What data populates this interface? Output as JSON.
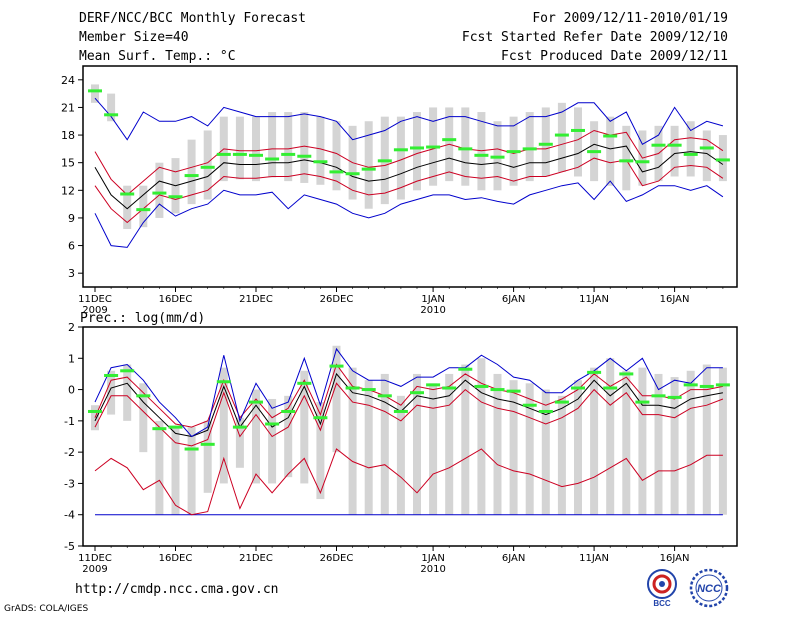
{
  "header": {
    "title": "DERF/NCC/BCC Monthly Forecast",
    "member_size": "Member Size=40",
    "variable": "Mean Surf. Temp.: °C",
    "period": "For 2009/12/11-2010/01/19",
    "started": "Fcst Started Refer Date 2009/12/10",
    "produced": "Fcst Produced Date 2009/12/11"
  },
  "footer": {
    "url": "http://cmdp.ncc.cma.gov.cn",
    "grads": "GrADS: COLA/IGES",
    "logo_left_text": "BCC",
    "logo_right_text": "NCC"
  },
  "colors": {
    "box": "#d4d4d4",
    "mean": "#000000",
    "band": "#cc0022",
    "extreme": "#0000cc",
    "median": "#33ee33",
    "frame": "#000000"
  },
  "chart_data": [
    {
      "type": "box",
      "name": "temperature",
      "title": "Mean Surf. Temp.: °C",
      "xlabel": "",
      "ylabel": "°C",
      "ylim": [
        1.5,
        25.5
      ],
      "yticks": [
        3,
        6,
        9,
        12,
        15,
        18,
        21,
        24
      ],
      "xlim": [
        0,
        40
      ],
      "xticks": [
        {
          "day": 0,
          "label": "11DEC",
          "year": "2009"
        },
        {
          "day": 5,
          "label": "16DEC",
          "year": ""
        },
        {
          "day": 10,
          "label": "21DEC",
          "year": ""
        },
        {
          "day": 15,
          "label": "26DEC",
          "year": ""
        },
        {
          "day": 21,
          "label": "1JAN",
          "year": "2010"
        },
        {
          "day": 26,
          "label": "6JAN",
          "year": ""
        },
        {
          "day": 31,
          "label": "11JAN",
          "year": ""
        },
        {
          "day": 36,
          "label": "16JAN",
          "year": ""
        }
      ],
      "days": [
        0,
        1,
        2,
        3,
        4,
        5,
        6,
        7,
        8,
        9,
        10,
        11,
        12,
        13,
        14,
        15,
        16,
        17,
        18,
        19,
        20,
        21,
        22,
        23,
        24,
        25,
        26,
        27,
        28,
        29,
        30,
        31,
        32,
        33,
        34,
        35,
        36,
        37,
        38,
        39
      ],
      "box_low": [
        21.5,
        19.5,
        7.8,
        8.0,
        9.0,
        9.5,
        10.5,
        11.0,
        13.0,
        13.2,
        13.0,
        13.4,
        13.0,
        12.8,
        12.6,
        12.0,
        11.0,
        10.0,
        10.5,
        11.0,
        12.0,
        12.5,
        13.0,
        12.5,
        12.0,
        12.0,
        12.5,
        13.0,
        13.5,
        14.0,
        13.5,
        13.0,
        12.5,
        12.0,
        12.5,
        13.0,
        13.5,
        13.5,
        13.0,
        13.0
      ],
      "box_high": [
        23.5,
        22.5,
        12.5,
        12.5,
        15.0,
        15.5,
        17.5,
        18.5,
        20.0,
        20.0,
        20.0,
        20.5,
        20.5,
        20.5,
        20.0,
        19.5,
        19.0,
        19.5,
        20.0,
        20.0,
        20.5,
        21.0,
        21.0,
        21.0,
        20.5,
        19.5,
        20.0,
        20.5,
        21.0,
        21.5,
        21.0,
        19.5,
        20.0,
        19.0,
        18.5,
        19.0,
        19.0,
        19.5,
        18.5,
        18.0
      ],
      "median": [
        22.8,
        20.2,
        11.6,
        9.9,
        11.7,
        11.3,
        13.6,
        14.5,
        15.9,
        15.9,
        15.8,
        15.4,
        15.9,
        15.7,
        15.1,
        14.0,
        13.8,
        14.3,
        15.2,
        16.4,
        16.6,
        16.7,
        17.5,
        16.5,
        15.8,
        15.6,
        16.2,
        16.5,
        17.0,
        18.0,
        18.5,
        16.2,
        17.9,
        15.2,
        15.1,
        16.9,
        16.9,
        15.9,
        16.6,
        15.3
      ],
      "series": [
        {
          "name": "ensemble mean",
          "role": "mean",
          "values": [
            14.5,
            11.5,
            10.0,
            11.5,
            13.0,
            12.5,
            13.0,
            13.5,
            15.0,
            14.8,
            14.8,
            15.0,
            15.0,
            15.3,
            15.0,
            14.5,
            13.5,
            13.0,
            13.2,
            13.8,
            14.5,
            15.0,
            15.5,
            15.0,
            14.8,
            15.0,
            14.5,
            15.0,
            15.0,
            15.5,
            16.0,
            17.0,
            16.5,
            16.8,
            14.0,
            14.5,
            16.0,
            16.2,
            16.0,
            14.8
          ]
        },
        {
          "name": "upper band",
          "role": "band",
          "values": [
            16.2,
            13.2,
            11.5,
            13.0,
            14.5,
            14.0,
            14.5,
            15.0,
            16.5,
            16.3,
            16.3,
            16.5,
            16.5,
            16.8,
            16.5,
            16.0,
            15.0,
            14.5,
            14.7,
            15.3,
            16.0,
            16.5,
            17.0,
            16.5,
            16.3,
            16.5,
            16.0,
            16.5,
            16.5,
            17.0,
            17.5,
            18.5,
            18.0,
            18.3,
            15.5,
            16.0,
            17.5,
            17.7,
            17.5,
            16.3
          ]
        },
        {
          "name": "lower band",
          "role": "band",
          "values": [
            12.5,
            10.0,
            8.5,
            10.0,
            11.5,
            11.0,
            11.5,
            12.0,
            13.5,
            13.3,
            13.3,
            13.5,
            13.5,
            13.8,
            13.5,
            13.0,
            12.0,
            11.5,
            11.7,
            12.3,
            13.0,
            13.5,
            14.0,
            13.5,
            13.3,
            13.5,
            13.0,
            13.5,
            13.5,
            14.0,
            14.5,
            15.5,
            15.0,
            15.3,
            12.5,
            13.0,
            14.5,
            14.7,
            14.5,
            13.3
          ]
        },
        {
          "name": "ensemble maximum",
          "role": "extreme",
          "values": [
            22.0,
            20.0,
            17.5,
            20.5,
            19.5,
            19.5,
            20.0,
            19.0,
            21.0,
            20.5,
            20.0,
            20.0,
            20.0,
            20.3,
            20.0,
            19.5,
            17.5,
            18.0,
            18.5,
            19.5,
            20.0,
            19.5,
            20.0,
            20.0,
            19.5,
            19.0,
            19.0,
            20.0,
            20.0,
            20.5,
            21.5,
            21.5,
            19.5,
            20.5,
            17.0,
            18.0,
            21.0,
            18.5,
            19.5,
            19.0
          ]
        },
        {
          "name": "ensemble minimum",
          "role": "extreme",
          "values": [
            9.5,
            6.0,
            5.8,
            8.5,
            10.5,
            9.2,
            10.0,
            10.5,
            12.0,
            11.5,
            11.5,
            11.8,
            10.0,
            11.5,
            11.0,
            10.5,
            9.5,
            9.0,
            9.5,
            10.5,
            11.0,
            11.5,
            11.5,
            11.0,
            11.2,
            10.8,
            10.5,
            11.5,
            12.0,
            12.5,
            12.8,
            11.0,
            13.0,
            10.8,
            11.5,
            12.5,
            12.5,
            12.0,
            12.5,
            11.3
          ]
        }
      ]
    },
    {
      "type": "box",
      "name": "precipitation",
      "title": "Prec.: log(mm/d)",
      "xlabel": "",
      "ylabel": "log(mm/d)",
      "ylim": [
        -5,
        2
      ],
      "yticks": [
        -5,
        -4,
        -3,
        -2,
        -1,
        0,
        1,
        2
      ],
      "xlim": [
        0,
        40
      ],
      "xticks": [
        {
          "day": 0,
          "label": "11DEC",
          "year": "2009"
        },
        {
          "day": 5,
          "label": "16DEC",
          "year": ""
        },
        {
          "day": 10,
          "label": "21DEC",
          "year": ""
        },
        {
          "day": 15,
          "label": "26DEC",
          "year": ""
        },
        {
          "day": 21,
          "label": "1JAN",
          "year": "2010"
        },
        {
          "day": 26,
          "label": "6JAN",
          "year": ""
        },
        {
          "day": 31,
          "label": "11JAN",
          "year": ""
        },
        {
          "day": 36,
          "label": "16JAN",
          "year": ""
        }
      ],
      "days": [
        0,
        1,
        2,
        3,
        4,
        5,
        6,
        7,
        8,
        9,
        10,
        11,
        12,
        13,
        14,
        15,
        16,
        17,
        18,
        19,
        20,
        21,
        22,
        23,
        24,
        25,
        26,
        27,
        28,
        29,
        30,
        31,
        32,
        33,
        34,
        35,
        36,
        37,
        38,
        39
      ],
      "box_low": [
        -1.3,
        -0.8,
        -1.0,
        -2.0,
        -4.0,
        -4.0,
        -4.0,
        -3.3,
        -3.0,
        -2.5,
        -3.0,
        -3.0,
        -2.8,
        -3.0,
        -3.5,
        -2.0,
        -4.0,
        -4.0,
        -4.0,
        -4.0,
        -4.0,
        -4.0,
        -4.0,
        -4.0,
        -4.0,
        -4.0,
        -4.0,
        -4.0,
        -4.0,
        -4.0,
        -4.0,
        -4.0,
        -4.0,
        -4.0,
        -4.0,
        -4.0,
        -4.0,
        -4.0,
        -4.0,
        -4.0
      ],
      "box_high": [
        -0.5,
        0.6,
        0.8,
        0.2,
        -1.0,
        -1.2,
        -1.2,
        -1.0,
        0.7,
        -0.9,
        0.0,
        -0.3,
        -0.2,
        0.6,
        -0.4,
        1.4,
        0.7,
        0.3,
        0.5,
        -0.2,
        0.5,
        0.2,
        0.5,
        0.8,
        1.0,
        0.5,
        0.3,
        0.2,
        0.0,
        -0.2,
        0.3,
        0.7,
        1.0,
        0.6,
        0.7,
        0.5,
        0.4,
        0.6,
        0.8,
        0.7
      ],
      "median": [
        -0.7,
        0.45,
        0.6,
        -0.2,
        -1.25,
        -1.2,
        -1.9,
        -1.75,
        0.25,
        -1.2,
        -0.4,
        -1.1,
        -0.7,
        0.2,
        -0.9,
        0.75,
        0.05,
        0.0,
        -0.2,
        -0.7,
        -0.1,
        0.15,
        0.05,
        0.65,
        0.1,
        0.0,
        -0.05,
        -0.5,
        -0.7,
        -0.4,
        0.05,
        0.55,
        0.05,
        0.5,
        -0.4,
        -0.2,
        -0.25,
        0.15,
        0.1,
        0.15
      ],
      "series": [
        {
          "name": "ensemble mean",
          "role": "mean",
          "values": [
            -1.0,
            0.05,
            0.2,
            -0.4,
            -0.9,
            -1.4,
            -1.5,
            -1.3,
            0.1,
            -1.2,
            -0.5,
            -1.2,
            -0.9,
            0.1,
            -1.1,
            0.5,
            -0.1,
            -0.2,
            -0.4,
            -0.7,
            -0.2,
            -0.3,
            -0.2,
            0.3,
            -0.1,
            -0.3,
            -0.4,
            -0.6,
            -0.8,
            -0.6,
            -0.3,
            0.3,
            -0.2,
            0.2,
            -0.5,
            -0.5,
            -0.6,
            -0.3,
            -0.2,
            -0.1
          ]
        },
        {
          "name": "upper band",
          "role": "band",
          "values": [
            -0.9,
            0.3,
            0.4,
            -0.1,
            -0.6,
            -1.1,
            -1.2,
            -1.0,
            0.3,
            -0.9,
            -0.3,
            -0.9,
            -0.6,
            0.3,
            -0.8,
            0.8,
            0.1,
            0.0,
            -0.2,
            -0.5,
            0.1,
            0.0,
            0.1,
            0.5,
            0.2,
            0.0,
            -0.1,
            -0.3,
            -0.5,
            -0.3,
            0.0,
            0.5,
            0.1,
            0.4,
            -0.2,
            -0.2,
            -0.3,
            0.0,
            0.0,
            0.1
          ]
        },
        {
          "name": "lower band",
          "role": "band",
          "values": [
            -1.2,
            -0.2,
            -0.2,
            -0.7,
            -1.2,
            -1.7,
            -1.8,
            -1.6,
            -0.1,
            -1.5,
            -0.8,
            -1.5,
            -1.2,
            -0.2,
            -1.3,
            0.2,
            -0.4,
            -0.5,
            -0.7,
            -1.0,
            -0.5,
            -0.6,
            -0.5,
            0.0,
            -0.4,
            -0.6,
            -0.7,
            -0.9,
            -1.1,
            -0.9,
            -0.6,
            0.0,
            -0.5,
            -0.1,
            -0.8,
            -0.8,
            -0.9,
            -0.6,
            -0.5,
            -0.3
          ]
        },
        {
          "name": "ensemble maximum",
          "role": "extreme",
          "values": [
            -0.4,
            0.7,
            0.8,
            0.3,
            -0.4,
            -0.9,
            -1.5,
            -1.2,
            1.1,
            -1.0,
            0.2,
            -0.6,
            -0.4,
            1.0,
            -0.5,
            1.3,
            0.6,
            0.3,
            0.3,
            0.1,
            0.4,
            0.4,
            0.7,
            0.7,
            1.1,
            0.8,
            0.4,
            0.3,
            -0.1,
            -0.1,
            0.3,
            0.6,
            1.0,
            0.6,
            1.0,
            0.0,
            0.3,
            0.2,
            0.7,
            0.7
          ]
        },
        {
          "name": "ensemble minimum",
          "role": "extreme",
          "values": [
            -4.0,
            -4.0,
            -4.0,
            -4.0,
            -4.0,
            -4.0,
            -4.0,
            -4.0,
            -4.0,
            -4.0,
            -4.0,
            -4.0,
            -4.0,
            -4.0,
            -4.0,
            -4.0,
            -4.0,
            -4.0,
            -4.0,
            -4.0,
            -4.0,
            -4.0,
            -4.0,
            -4.0,
            -4.0,
            -4.0,
            -4.0,
            -4.0,
            -4.0,
            -4.0,
            -4.0,
            -4.0,
            -4.0,
            -4.0,
            -4.0,
            -4.0,
            -4.0,
            -4.0,
            -4.0,
            -4.0
          ]
        },
        {
          "name": "red lower envelope",
          "role": "band-low",
          "values": [
            -2.6,
            -2.2,
            -2.5,
            -3.2,
            -2.9,
            -3.7,
            -4.0,
            -3.9,
            -2.2,
            -3.8,
            -2.7,
            -3.3,
            -2.7,
            -2.2,
            -3.3,
            -1.9,
            -2.3,
            -2.5,
            -2.4,
            -2.8,
            -3.3,
            -2.7,
            -2.5,
            -2.2,
            -1.9,
            -2.4,
            -2.6,
            -2.7,
            -2.9,
            -3.1,
            -3.0,
            -2.8,
            -2.5,
            -2.2,
            -2.9,
            -2.6,
            -2.6,
            -2.4,
            -2.1,
            -2.1
          ]
        }
      ]
    }
  ]
}
